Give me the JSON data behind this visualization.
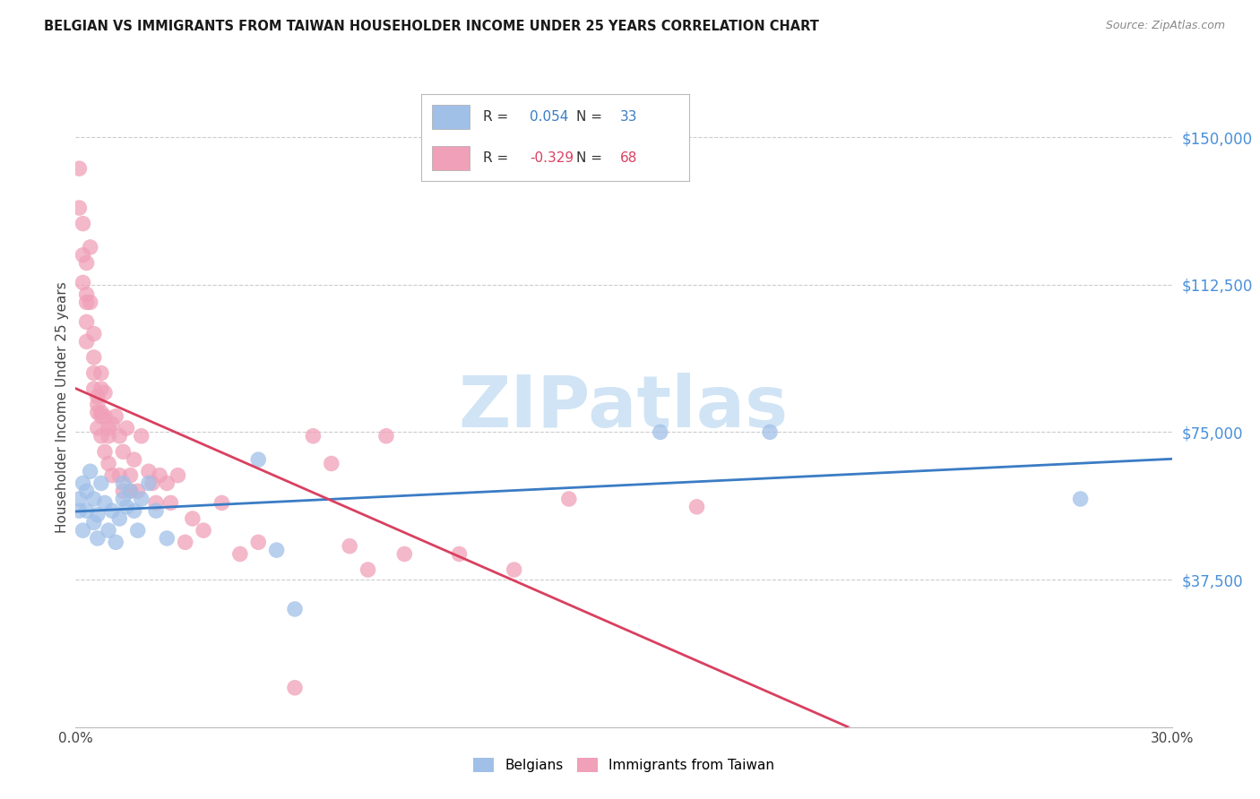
{
  "title": "BELGIAN VS IMMIGRANTS FROM TAIWAN HOUSEHOLDER INCOME UNDER 25 YEARS CORRELATION CHART",
  "source": "Source: ZipAtlas.com",
  "ylabel": "Householder Income Under 25 years",
  "xlim": [
    0.0,
    0.3
  ],
  "ylim": [
    0,
    162500
  ],
  "ytick_vals": [
    0,
    37500,
    75000,
    112500,
    150000
  ],
  "ytick_labels": [
    "",
    "$37,500",
    "$75,000",
    "$112,500",
    "$150,000"
  ],
  "xtick_vals": [
    0.0,
    0.05,
    0.1,
    0.15,
    0.2,
    0.25,
    0.3
  ],
  "xtick_labels": [
    "0.0%",
    "",
    "",
    "",
    "",
    "",
    "30.0%"
  ],
  "bg_color": "#ffffff",
  "grid_color": "#cccccc",
  "blue_scatter": "#a0c0e8",
  "pink_scatter": "#f0a0b8",
  "blue_line": "#3a7cc4",
  "pink_line_solid": "#d94060",
  "pink_line_dash": "#f0a0b8",
  "ytick_color": "#4a90d9",
  "watermark_color": "#d0e4f5",
  "legend_R_blue": "0.054",
  "legend_N_blue": "33",
  "legend_R_pink": "-0.329",
  "legend_N_pink": "68",
  "belgians_x": [
    0.001,
    0.001,
    0.002,
    0.002,
    0.003,
    0.003,
    0.004,
    0.005,
    0.005,
    0.006,
    0.006,
    0.007,
    0.008,
    0.009,
    0.01,
    0.011,
    0.012,
    0.013,
    0.013,
    0.014,
    0.015,
    0.016,
    0.017,
    0.018,
    0.02,
    0.022,
    0.025,
    0.05,
    0.055,
    0.06,
    0.16,
    0.19,
    0.275
  ],
  "belgians_y": [
    55000,
    58000,
    62000,
    50000,
    55000,
    60000,
    65000,
    52000,
    58000,
    48000,
    54000,
    62000,
    57000,
    50000,
    55000,
    47000,
    53000,
    58000,
    62000,
    56000,
    60000,
    55000,
    50000,
    58000,
    62000,
    55000,
    48000,
    68000,
    45000,
    30000,
    75000,
    75000,
    58000
  ],
  "taiwan_x": [
    0.001,
    0.001,
    0.002,
    0.002,
    0.002,
    0.003,
    0.003,
    0.003,
    0.003,
    0.003,
    0.004,
    0.004,
    0.005,
    0.005,
    0.005,
    0.005,
    0.006,
    0.006,
    0.006,
    0.006,
    0.007,
    0.007,
    0.007,
    0.007,
    0.007,
    0.008,
    0.008,
    0.008,
    0.009,
    0.009,
    0.009,
    0.01,
    0.01,
    0.011,
    0.012,
    0.012,
    0.013,
    0.013,
    0.014,
    0.015,
    0.015,
    0.016,
    0.017,
    0.018,
    0.02,
    0.021,
    0.022,
    0.023,
    0.025,
    0.026,
    0.028,
    0.03,
    0.032,
    0.035,
    0.04,
    0.045,
    0.05,
    0.06,
    0.065,
    0.07,
    0.075,
    0.08,
    0.085,
    0.09,
    0.105,
    0.12,
    0.135,
    0.17
  ],
  "taiwan_y": [
    142000,
    132000,
    128000,
    120000,
    113000,
    118000,
    110000,
    108000,
    103000,
    98000,
    122000,
    108000,
    100000,
    90000,
    94000,
    86000,
    82000,
    76000,
    84000,
    80000,
    90000,
    74000,
    79000,
    86000,
    80000,
    79000,
    70000,
    85000,
    74000,
    67000,
    76000,
    77000,
    64000,
    79000,
    74000,
    64000,
    70000,
    60000,
    76000,
    64000,
    60000,
    68000,
    60000,
    74000,
    65000,
    62000,
    57000,
    64000,
    62000,
    57000,
    64000,
    47000,
    53000,
    50000,
    57000,
    44000,
    47000,
    10000,
    74000,
    67000,
    46000,
    40000,
    74000,
    44000,
    44000,
    40000,
    58000,
    56000
  ]
}
